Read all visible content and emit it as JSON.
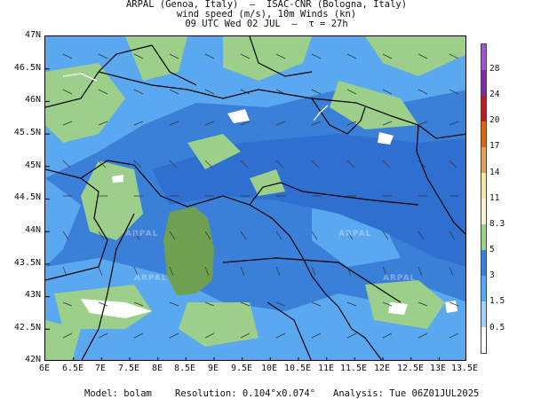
{
  "header": {
    "line1": "ARPAL (Genoa, Italy)  —  ISAC-CNR (Bologna, Italy)",
    "line2": "wind speed (m/s), 10m Winds (kn)",
    "line3": "09 UTC Wed 02 JUL  —  τ = 27h"
  },
  "map": {
    "lat_labels": [
      "47N",
      "46.5N",
      "46N",
      "45.5N",
      "45N",
      "44.5N",
      "44N",
      "43.5N",
      "43N",
      "42.5N",
      "42N"
    ],
    "lon_labels": [
      "6E",
      "6.5E",
      "7E",
      "7.5E",
      "8E",
      "8.5E",
      "9E",
      "9.5E",
      "10E",
      "10.5E",
      "11E",
      "11.5E",
      "12E",
      "12.5E",
      "13E",
      "13.5E"
    ],
    "lat_range": [
      42,
      47
    ],
    "lon_range": [
      6,
      13.5
    ],
    "watermark": "ARPAL"
  },
  "colorbar": {
    "labels": [
      "28",
      "24",
      "20",
      "17",
      "14",
      "11",
      "8.3",
      "5",
      "3",
      "1.5",
      "0.5"
    ],
    "colors": [
      "#9b59d0",
      "#7a2fa0",
      "#b22222",
      "#d2691e",
      "#e0a060",
      "#f5e6b0",
      "#f7f1d8",
      "#9ccf8a",
      "#3a7fd8",
      "#5aa8f0",
      "#a8d0f5",
      "#ffffff"
    ]
  },
  "footer": {
    "model": "Model: bolam",
    "resolution": "Resolution: 0.104°x0.074°",
    "analysis": "Analysis: Tue 06Z01JUL2025"
  }
}
